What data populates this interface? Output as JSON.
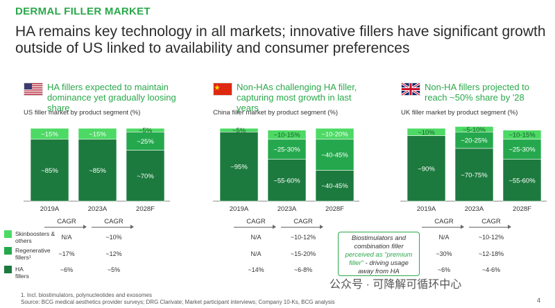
{
  "kicker": "DERMAL FILLER MARKET",
  "headline": "HA remains key technology in all markets; innovative fillers have significant growth outside of US linked to availability and consumer preferences",
  "colors": {
    "green_text": "#2aa84a",
    "skinboosters": "#4cd964",
    "regenerative": "#25a84d",
    "ha": "#1c7a3e",
    "label": "#ffffff"
  },
  "panels": [
    {
      "flag": "us-flag-icon",
      "title": "HA fillers expected to maintain dominance yet gradually loosing share",
      "subtitle": "US filler market by product segment (%)"
    },
    {
      "flag": "china-flag-icon",
      "title": "Non-HAs challenging HA filler, capturing most growth in last years",
      "subtitle": "China filler market by product segment (%)"
    },
    {
      "flag": "uk-flag-icon",
      "title": "Non-HA fillers projected to reach ~50% share by '28",
      "subtitle": "UK filler market by product segment (%)"
    }
  ],
  "chart_data": [
    {
      "type": "bar",
      "stacked": true,
      "categories": [
        "2019A",
        "2023A",
        "2028F"
      ],
      "series": [
        {
          "name": "HA fillers",
          "values": [
            85,
            85,
            70
          ],
          "labels": [
            "~85%",
            "~85%",
            "~70%"
          ]
        },
        {
          "name": "Regenerative fillers¹",
          "values": [
            0,
            0,
            25
          ],
          "labels": [
            "",
            "",
            "~25%"
          ]
        },
        {
          "name": "Skinboosters & others",
          "values": [
            15,
            15,
            5
          ],
          "labels": [
            "~15%",
            "~15%",
            "~5%"
          ]
        }
      ],
      "ylim": [
        0,
        100
      ]
    },
    {
      "type": "bar",
      "stacked": true,
      "categories": [
        "2019A",
        "2023A",
        "2028F"
      ],
      "series": [
        {
          "name": "HA fillers",
          "values": [
            95,
            57.5,
            42.5
          ],
          "labels": [
            "~95%",
            "~55-60%",
            "~40-45%"
          ]
        },
        {
          "name": "Regenerative fillers¹",
          "values": [
            0,
            27.5,
            42.5
          ],
          "labels": [
            "",
            "~25-30%",
            "~40-45%"
          ]
        },
        {
          "name": "Skinboosters & others",
          "values": [
            5,
            12.5,
            15
          ],
          "labels": [
            "~5%",
            "~10-15%",
            "~10-20%"
          ]
        }
      ],
      "ylim": [
        0,
        100
      ]
    },
    {
      "type": "bar",
      "stacked": true,
      "categories": [
        "2019A",
        "2023A",
        "2028F"
      ],
      "series": [
        {
          "name": "HA fillers",
          "values": [
            90,
            72.5,
            57.5
          ],
          "labels": [
            "~90%",
            "~70-75%",
            "~55-60%"
          ]
        },
        {
          "name": "Regenerative fillers¹",
          "values": [
            0,
            22.5,
            27.5
          ],
          "labels": [
            "",
            "~20-25%",
            "~25-30%"
          ]
        },
        {
          "name": "Skinboosters & others",
          "values": [
            10,
            7.5,
            12.5
          ],
          "labels": [
            "~10%",
            "~5-10%",
            "~10-15%"
          ]
        }
      ],
      "ylim": [
        0,
        100
      ]
    }
  ],
  "legend": [
    "Skinboosters & others",
    "Regenerative fillers¹",
    "HA fillers"
  ],
  "cagr_header": "CAGR",
  "cagr": [
    {
      "c1": [
        "N/A",
        "~17%",
        "~6%"
      ],
      "c2": [
        "~10%",
        "~12%",
        "~5%"
      ]
    },
    {
      "c1": [
        "N/A",
        "N/A",
        "~14%"
      ],
      "c2": [
        "~10-12%",
        "~15-20%",
        "~6-8%"
      ]
    },
    {
      "c1": [
        "N/A",
        "~30%",
        "~6%"
      ],
      "c2": [
        "~10-12%",
        "~12-18%",
        "~4-6%"
      ]
    }
  ],
  "callout": {
    "line1": "Biostimulators and",
    "line2": "combination filler",
    "line3": "perceived as \"premium",
    "line4": "filler\"",
    "line5": " - driving usage",
    "line6": "away from HA"
  },
  "footnote1": "1. Incl. biostimulators, polynucleotides and exosomes",
  "footnote2": "Source: BCG medical aesthetics provider surveys; DRG Clarivate; Market participant interviews; Company 10-Ks, BCG analysis",
  "watermark": "公众号 · 可降解可循环中心",
  "page": "4"
}
